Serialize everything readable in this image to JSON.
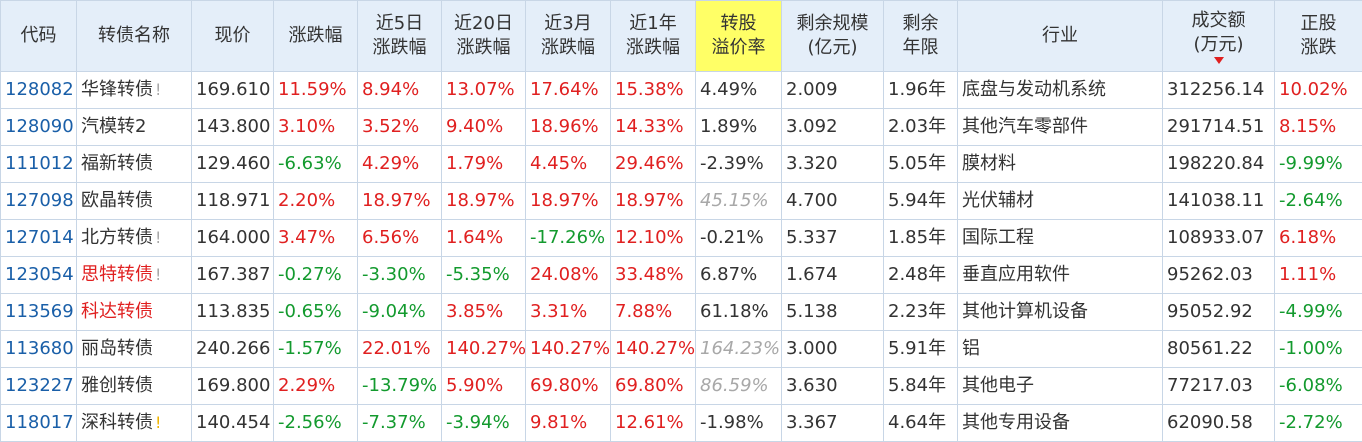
{
  "headers": [
    {
      "l1": "代码",
      "l2": ""
    },
    {
      "l1": "转债名称",
      "l2": ""
    },
    {
      "l1": "现价",
      "l2": ""
    },
    {
      "l1": "涨跌幅",
      "l2": ""
    },
    {
      "l1": "近5日",
      "l2": "涨跌幅"
    },
    {
      "l1": "近20日",
      "l2": "涨跌幅"
    },
    {
      "l1": "近3月",
      "l2": "涨跌幅"
    },
    {
      "l1": "近1年",
      "l2": "涨跌幅"
    },
    {
      "l1": "转股",
      "l2": "溢价率"
    },
    {
      "l1": "剩余规模",
      "l2": "(亿元)"
    },
    {
      "l1": "剩余",
      "l2": "年限"
    },
    {
      "l1": "行业",
      "l2": ""
    },
    {
      "l1": "成交额",
      "l2": "(万元)"
    },
    {
      "l1": "正股",
      "l2": "涨跌"
    }
  ],
  "rows": [
    {
      "code": "128082",
      "name": "华锋转债",
      "flag": "!",
      "price": "169.610",
      "chg": "11.59%",
      "chg5": "8.94%",
      "chg20": "13.07%",
      "chg3m": "17.64%",
      "chg1y": "15.38%",
      "premium": "4.49%",
      "scale": "2.009",
      "years": "1.96年",
      "industry": "底盘与发动机系统",
      "volume": "312256.14",
      "stock_chg": "10.02%"
    },
    {
      "code": "128090",
      "name": "汽模转2",
      "flag": "",
      "price": "143.800",
      "chg": "3.10%",
      "chg5": "3.52%",
      "chg20": "9.40%",
      "chg3m": "18.96%",
      "chg1y": "14.33%",
      "premium": "1.89%",
      "scale": "3.092",
      "years": "2.03年",
      "industry": "其他汽车零部件",
      "volume": "291714.51",
      "stock_chg": "8.15%"
    },
    {
      "code": "111012",
      "name": "福新转债",
      "flag": "",
      "price": "129.460",
      "chg": "-6.63%",
      "chg5": "4.29%",
      "chg20": "1.79%",
      "chg3m": "4.45%",
      "chg1y": "29.46%",
      "premium": "-2.39%",
      "scale": "3.320",
      "years": "5.05年",
      "industry": "膜材料",
      "volume": "198220.84",
      "stock_chg": "-9.99%"
    },
    {
      "code": "127098",
      "name": "欧晶转债",
      "flag": "",
      "price": "118.971",
      "chg": "2.20%",
      "chg5": "18.97%",
      "chg20": "18.97%",
      "chg3m": "18.97%",
      "chg1y": "18.97%",
      "premium": "45.15%",
      "scale": "4.700",
      "years": "5.94年",
      "industry": "光伏辅材",
      "volume": "141038.11",
      "stock_chg": "-2.64%"
    },
    {
      "code": "127014",
      "name": "北方转债",
      "flag": "!",
      "price": "164.000",
      "chg": "3.47%",
      "chg5": "6.56%",
      "chg20": "1.64%",
      "chg3m": "-17.26%",
      "chg1y": "12.10%",
      "premium": "-0.21%",
      "scale": "5.337",
      "years": "1.85年",
      "industry": "国际工程",
      "volume": "108933.07",
      "stock_chg": "6.18%"
    },
    {
      "code": "123054",
      "name": "思特转债",
      "flag": "!",
      "price": "167.387",
      "chg": "-0.27%",
      "chg5": "-3.30%",
      "chg20": "-5.35%",
      "chg3m": "24.08%",
      "chg1y": "33.48%",
      "premium": "6.87%",
      "scale": "1.674",
      "years": "2.48年",
      "industry": "垂直应用软件",
      "volume": "95262.03",
      "stock_chg": "1.11%"
    },
    {
      "code": "113569",
      "name": "科达转债",
      "flag": "",
      "price": "113.835",
      "chg": "-0.65%",
      "chg5": "-9.04%",
      "chg20": "3.85%",
      "chg3m": "3.31%",
      "chg1y": "7.88%",
      "premium": "61.18%",
      "scale": "5.138",
      "years": "2.23年",
      "industry": "其他计算机设备",
      "volume": "95052.92",
      "stock_chg": "-4.99%"
    },
    {
      "code": "113680",
      "name": "丽岛转债",
      "flag": "",
      "price": "240.266",
      "chg": "-1.57%",
      "chg5": "22.01%",
      "chg20": "140.27%",
      "chg3m": "140.27%",
      "chg1y": "140.27%",
      "premium": "164.23%",
      "scale": "3.000",
      "years": "5.91年",
      "industry": "铝",
      "volume": "80561.22",
      "stock_chg": "-1.00%"
    },
    {
      "code": "123227",
      "name": "雅创转债",
      "flag": "",
      "price": "169.800",
      "chg": "2.29%",
      "chg5": "-13.79%",
      "chg20": "5.90%",
      "chg3m": "69.80%",
      "chg1y": "69.80%",
      "premium": "86.59%",
      "scale": "3.630",
      "years": "5.84年",
      "industry": "其他电子",
      "volume": "77217.03",
      "stock_chg": "-6.08%"
    },
    {
      "code": "118017",
      "name": "深科转债",
      "flag": "!",
      "price": "140.454",
      "chg": "-2.56%",
      "chg5": "-7.37%",
      "chg20": "-3.94%",
      "chg3m": "9.81%",
      "chg1y": "12.61%",
      "premium": "-1.98%",
      "scale": "3.367",
      "years": "4.64年",
      "industry": "其他专用设备",
      "volume": "62090.58",
      "stock_chg": "-2.72%"
    }
  ],
  "colors": {
    "header_bg": "#e4eef9",
    "highlight_header": "#ffff66",
    "up": "#e02020",
    "down": "#139a2e",
    "code_link": "#1a5fa8",
    "muted_italic": "#a8a8a8",
    "border": "#c8d6e6"
  }
}
